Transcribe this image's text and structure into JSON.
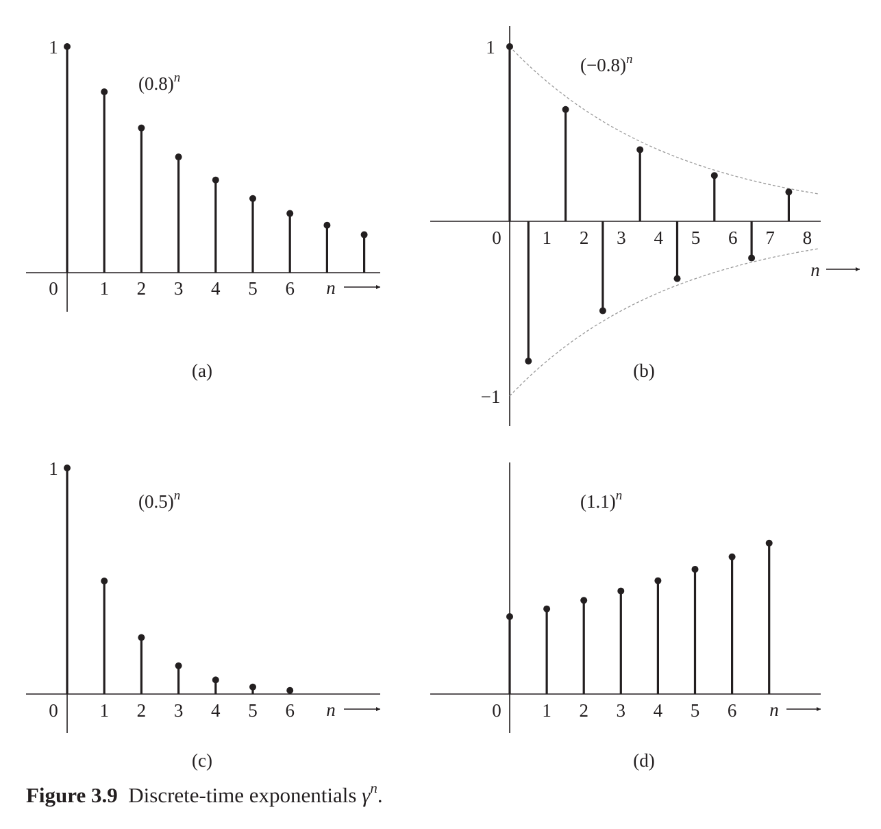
{
  "chart_data": [
    {
      "type": "stem",
      "panel_label": "(a)",
      "expression": {
        "base": "(0.8)",
        "exp": "n"
      },
      "x_axis_label": "n",
      "y_tick_labels": [
        {
          "value": 1,
          "text": "1"
        }
      ],
      "x_tick_labels": [
        "0",
        "1",
        "2",
        "3",
        "4",
        "5",
        "6"
      ],
      "x": [
        0,
        1,
        2,
        3,
        4,
        5,
        6,
        7,
        8
      ],
      "y": [
        1,
        0.8,
        0.64,
        0.512,
        0.41,
        0.328,
        0.262,
        0.21,
        0.168
      ],
      "ylim": [
        -0.18,
        1.1
      ]
    },
    {
      "type": "stem",
      "panel_label": "(b)",
      "expression": {
        "base": "(−0.8)",
        "exp": "n"
      },
      "x_axis_label": "n",
      "y_tick_labels": [
        {
          "value": 1,
          "text": "1"
        },
        {
          "value": -1,
          "text": "−1"
        }
      ],
      "x_tick_labels": [
        "0",
        "1",
        "2",
        "3",
        "4",
        "5",
        "6",
        "7",
        "8"
      ],
      "x": [
        0,
        1,
        2,
        3,
        4,
        5,
        6,
        7,
        8
      ],
      "y": [
        1,
        -0.8,
        0.64,
        -0.512,
        0.41,
        -0.328,
        0.262,
        -0.21,
        0.168
      ],
      "envelope": "±(0.8)^n",
      "ylim": [
        -1.15,
        1.1
      ]
    },
    {
      "type": "stem",
      "panel_label": "(c)",
      "expression": {
        "base": "(0.5)",
        "exp": "n"
      },
      "x_axis_label": "n",
      "y_tick_labels": [
        {
          "value": 1,
          "text": "1"
        }
      ],
      "x_tick_labels": [
        "0",
        "1",
        "2",
        "3",
        "4",
        "5",
        "6"
      ],
      "x": [
        0,
        1,
        2,
        3,
        4,
        5,
        6
      ],
      "y": [
        1,
        0.5,
        0.25,
        0.125,
        0.0625,
        0.031,
        0.016
      ],
      "ylim": [
        -0.18,
        1.1
      ]
    },
    {
      "type": "stem",
      "panel_label": "(d)",
      "expression": {
        "base": "(1.1)",
        "exp": "n"
      },
      "x_axis_label": "n",
      "y_tick_labels": [],
      "x_tick_labels": [
        "0",
        "1",
        "2",
        "3",
        "4",
        "5",
        "6"
      ],
      "x": [
        0,
        1,
        2,
        3,
        4,
        5,
        6,
        7
      ],
      "y": [
        1,
        1.1,
        1.21,
        1.331,
        1.464,
        1.611,
        1.772,
        1.949
      ],
      "ylim": [
        -0.18,
        2.1
      ]
    }
  ],
  "caption": {
    "label": "Figure 3.9",
    "text": "Discrete-time exponentials",
    "symbol": "γ",
    "symbol_exp": "n",
    "end": "."
  }
}
